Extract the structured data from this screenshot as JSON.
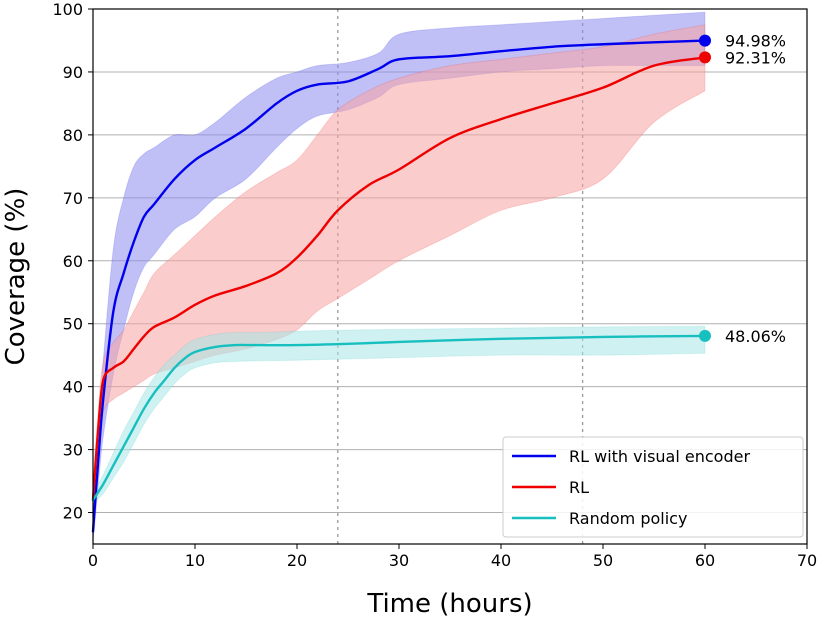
{
  "chart_data": {
    "type": "line",
    "xlabel": "Time (hours)",
    "ylabel": "Coverage (%)",
    "xlim": [
      0,
      70
    ],
    "ylim": [
      15,
      100
    ],
    "xticks": [
      0,
      10,
      20,
      30,
      40,
      50,
      60,
      70
    ],
    "yticks": [
      20,
      30,
      40,
      50,
      60,
      70,
      80,
      90,
      100
    ],
    "grid": "horizontal",
    "vertical_reference_lines": [
      24,
      48
    ],
    "legend_position": "lower-right",
    "series": [
      {
        "name": "RL with visual encoder",
        "color": "#0000ee",
        "band_color": "#8c8cef",
        "x": [
          0,
          0.5,
          1,
          2,
          3,
          4,
          5,
          6,
          8,
          10,
          12,
          15,
          18,
          20,
          22,
          25,
          28,
          30,
          35,
          40,
          45,
          50,
          55,
          60
        ],
        "y": [
          17,
          28,
          38,
          52,
          58,
          63,
          67,
          69,
          73,
          76,
          78,
          81,
          85,
          87,
          88,
          88.5,
          90.5,
          92,
          92.5,
          93.3,
          94,
          94.4,
          94.7,
          94.98
        ],
        "lower": [
          15,
          24,
          32,
          42,
          49,
          55,
          59,
          61,
          65,
          67,
          70,
          73,
          78,
          81,
          83,
          84,
          86,
          88,
          89,
          90,
          90.5,
          91,
          91,
          91
        ],
        "upper": [
          20,
          32,
          44,
          62,
          70,
          75,
          77,
          78,
          80,
          80,
          82,
          86,
          89,
          90,
          91,
          91.5,
          93,
          96,
          97,
          97.5,
          98,
          98.5,
          99,
          99.5
        ],
        "end_label": "94.98%",
        "end_value": 94.98
      },
      {
        "name": "RL",
        "color": "#ee0000",
        "band_color": "#f7a3a3",
        "x": [
          0,
          0.5,
          1,
          2,
          3,
          4,
          5,
          6,
          8,
          10,
          12,
          15,
          18,
          20,
          22,
          24,
          27,
          30,
          35,
          40,
          45,
          50,
          55,
          60
        ],
        "y": [
          22,
          33,
          41,
          43,
          44,
          46,
          48,
          49.5,
          51,
          53,
          54.5,
          56,
          58,
          60.5,
          64,
          68,
          72,
          74.5,
          79.5,
          82.5,
          85,
          87.5,
          91,
          92.31
        ],
        "lower": [
          20,
          29,
          36,
          38,
          39,
          40,
          41,
          42,
          43,
          44,
          45,
          46,
          47.5,
          49,
          52,
          54,
          57,
          60,
          64,
          68,
          70,
          73,
          82,
          87
        ],
        "upper": [
          25,
          36,
          44,
          47,
          49,
          52,
          55,
          58,
          61,
          64,
          67,
          71,
          74,
          76,
          80,
          84,
          87,
          89,
          91,
          92,
          93,
          94,
          96,
          97.5
        ],
        "end_label": "92.31%",
        "end_value": 92.31
      },
      {
        "name": "Random policy",
        "color": "#17bfbf",
        "band_color": "#a8e6e6",
        "x": [
          0,
          1,
          2,
          3,
          4,
          5,
          6,
          7,
          8,
          9,
          10,
          12,
          14,
          16,
          20,
          25,
          30,
          40,
          50,
          60
        ],
        "y": [
          22,
          24.5,
          27.5,
          30.5,
          33.5,
          36.5,
          39,
          41,
          43,
          44.5,
          45.5,
          46.3,
          46.6,
          46.6,
          46.6,
          46.8,
          47.1,
          47.6,
          47.9,
          48.06
        ],
        "lower": [
          21.5,
          23,
          25.5,
          28,
          31,
          34,
          36.5,
          38.5,
          40.5,
          42,
          43,
          43.8,
          44,
          44.1,
          44.2,
          44.4,
          44.6,
          45,
          45,
          45.3
        ],
        "upper": [
          23,
          26,
          29.5,
          33,
          36,
          39,
          41.5,
          43.5,
          45,
          46.5,
          47.5,
          48.3,
          48.6,
          48.6,
          48.8,
          49,
          49.1,
          49.3,
          49.5,
          49.6
        ],
        "end_label": "48.06%",
        "end_value": 48.06
      }
    ]
  }
}
